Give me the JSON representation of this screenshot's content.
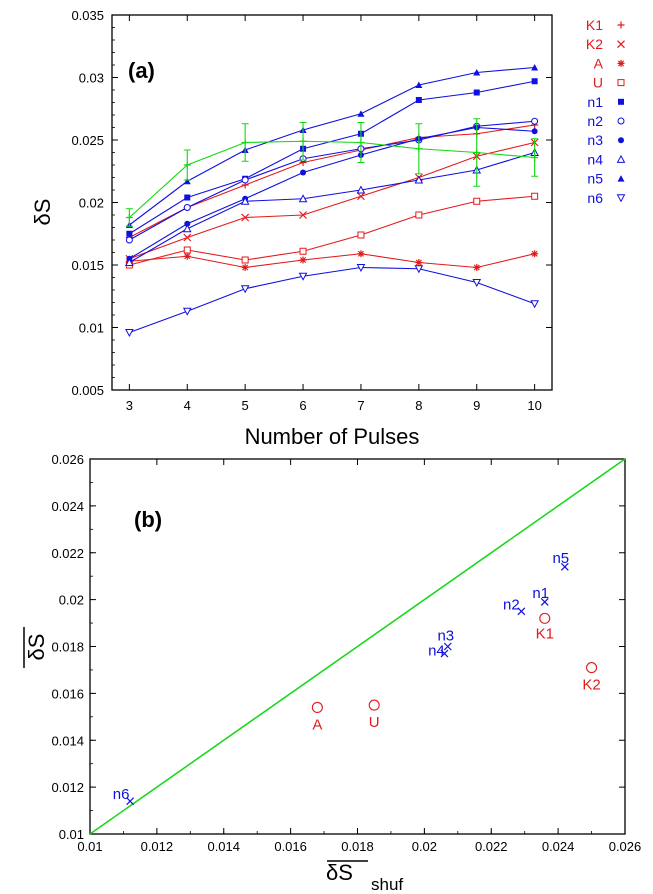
{
  "colors": {
    "red": "#e31a1c",
    "blue": "#1010e0",
    "green": "#12d812",
    "black": "#000000"
  },
  "chart_data": [
    {
      "type": "line",
      "panel_label": "(a)",
      "xlabel": "Number of Pulses",
      "ylabel": "δS",
      "xlim": [
        2.7,
        10.3
      ],
      "ylim": [
        0.005,
        0.035
      ],
      "xticks": [
        "3",
        "4",
        "5",
        "6",
        "7",
        "8",
        "9",
        "10"
      ],
      "yticks": [
        "0.005",
        "0.01",
        "0.015",
        "0.02",
        "0.025",
        "0.03",
        "0.035"
      ],
      "x": [
        3,
        4,
        5,
        6,
        7,
        8,
        9,
        10
      ],
      "legend_position": "right, outside plot",
      "series": [
        {
          "name": "K1",
          "color": "red",
          "marker": "plus",
          "values": [
            0.0172,
            0.0196,
            0.0214,
            0.0232,
            0.0242,
            0.0252,
            0.0255,
            0.0262
          ]
        },
        {
          "name": "K2",
          "color": "red",
          "marker": "cross",
          "values": [
            0.0155,
            0.0172,
            0.0188,
            0.019,
            0.0205,
            0.022,
            0.0237,
            0.0248
          ]
        },
        {
          "name": "A",
          "color": "red",
          "marker": "star",
          "values": [
            0.0153,
            0.0157,
            0.0148,
            0.0154,
            0.0159,
            0.0152,
            0.0148,
            0.0159
          ]
        },
        {
          "name": "U",
          "color": "red",
          "marker": "open-square",
          "values": [
            0.015,
            0.0162,
            0.0154,
            0.0161,
            0.0174,
            0.019,
            0.0201,
            0.0205
          ]
        },
        {
          "name": "n1",
          "color": "blue",
          "marker": "filled-square",
          "values": [
            0.0175,
            0.0204,
            0.0219,
            0.0243,
            0.0255,
            0.0282,
            0.0288,
            0.0297
          ]
        },
        {
          "name": "n2",
          "color": "blue",
          "marker": "open-circle",
          "values": [
            0.017,
            0.0196,
            0.0218,
            0.0235,
            0.0243,
            0.025,
            0.0261,
            0.0265
          ]
        },
        {
          "name": "n3",
          "color": "blue",
          "marker": "filled-circle",
          "values": [
            0.0155,
            0.0183,
            0.0203,
            0.0224,
            0.0238,
            0.0251,
            0.026,
            0.0257
          ]
        },
        {
          "name": "n4",
          "color": "blue",
          "marker": "open-triangle",
          "values": [
            0.0152,
            0.0179,
            0.0201,
            0.0203,
            0.021,
            0.0218,
            0.0226,
            0.024
          ]
        },
        {
          "name": "n5",
          "color": "blue",
          "marker": "filled-triangle",
          "values": [
            0.0182,
            0.0217,
            0.0242,
            0.0258,
            0.0271,
            0.0294,
            0.0304,
            0.0308
          ]
        },
        {
          "name": "n6",
          "color": "blue",
          "marker": "down-triangle",
          "values": [
            0.0096,
            0.0113,
            0.0131,
            0.0141,
            0.0148,
            0.0147,
            0.0136,
            0.0119
          ]
        },
        {
          "color": "green",
          "marker": "plus",
          "values": [
            0.0188,
            0.023,
            0.0248,
            0.0249,
            0.0248,
            0.0243,
            0.024,
            0.0236
          ],
          "errors": [
            0.0007,
            0.0012,
            0.0015,
            0.0015,
            0.0016,
            0.002,
            0.0027,
            0.0015
          ]
        }
      ]
    },
    {
      "type": "scatter",
      "panel_label": "(b)",
      "xlabel": "δS",
      "xlabel_subscript": "shuf",
      "ylabel": "δS",
      "xlim": [
        0.01,
        0.026
      ],
      "ylim": [
        0.01,
        0.026
      ],
      "xticks": [
        "0.01",
        "0.012",
        "0.014",
        "0.016",
        "0.018",
        "0.02",
        "0.022",
        "0.024",
        "0.026"
      ],
      "yticks": [
        "0.01",
        "0.012",
        "0.014",
        "0.016",
        "0.018",
        "0.02",
        "0.022",
        "0.024",
        "0.026"
      ],
      "diagonal": {
        "from": [
          0.01,
          0.01
        ],
        "to": [
          0.026,
          0.026
        ],
        "color": "green"
      },
      "points": [
        {
          "label": "K1",
          "x": 0.0236,
          "y": 0.0192,
          "color": "red",
          "marker": "open-circle"
        },
        {
          "label": "K2",
          "x": 0.025,
          "y": 0.0171,
          "color": "red",
          "marker": "open-circle"
        },
        {
          "label": "A",
          "x": 0.0168,
          "y": 0.0154,
          "color": "red",
          "marker": "open-circle"
        },
        {
          "label": "U",
          "x": 0.0185,
          "y": 0.0155,
          "color": "red",
          "marker": "open-circle"
        },
        {
          "label": "n1",
          "x": 0.0236,
          "y": 0.0199,
          "color": "blue",
          "marker": "cross"
        },
        {
          "label": "n2",
          "x": 0.0229,
          "y": 0.0195,
          "color": "blue",
          "marker": "cross"
        },
        {
          "label": "n3",
          "x": 0.0207,
          "y": 0.018,
          "color": "blue",
          "marker": "cross"
        },
        {
          "label": "n4",
          "x": 0.0206,
          "y": 0.0177,
          "color": "blue",
          "marker": "cross"
        },
        {
          "label": "n5",
          "x": 0.0242,
          "y": 0.0214,
          "color": "blue",
          "marker": "cross"
        },
        {
          "label": "n6",
          "x": 0.0112,
          "y": 0.0114,
          "color": "blue",
          "marker": "cross"
        }
      ]
    }
  ]
}
